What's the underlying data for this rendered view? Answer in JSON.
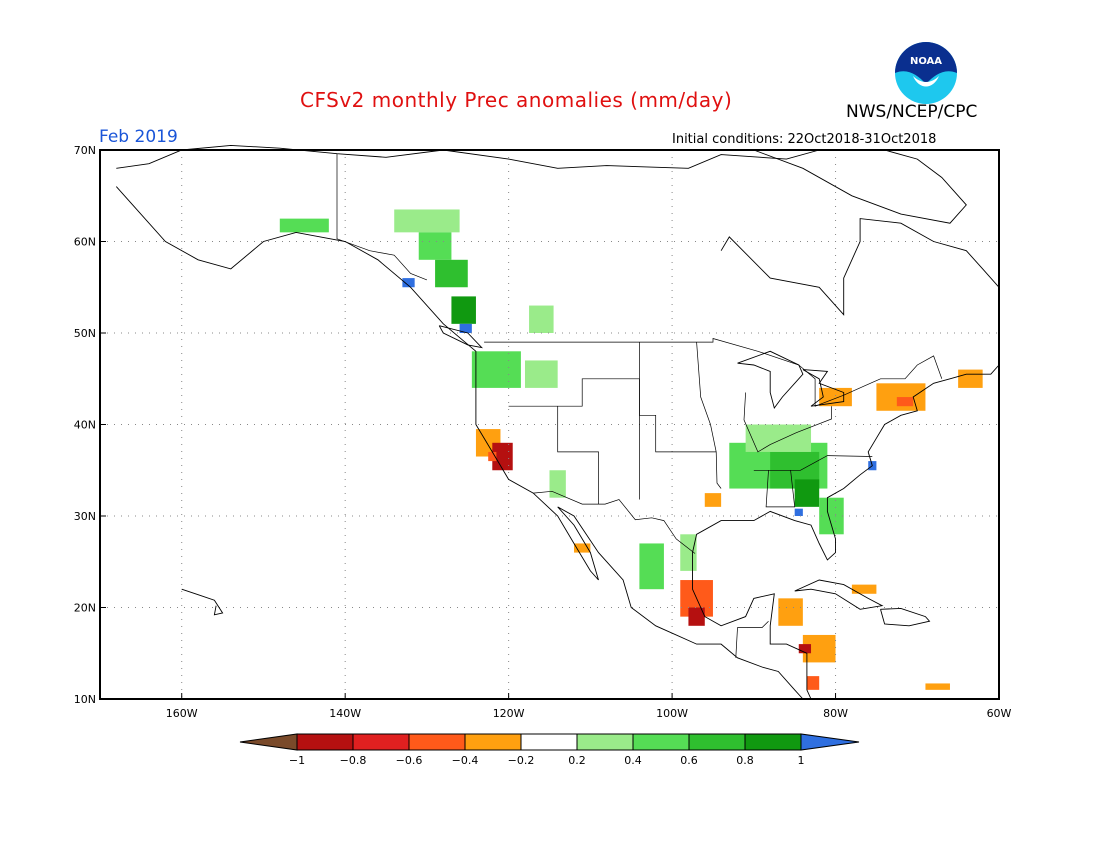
{
  "title": "CFSv2 monthly Prec anomalies (mm/day)",
  "agency": "NWS/NCEP/CPC",
  "logo_text": "NOAA",
  "month": "Feb 2019",
  "initial_conditions": "Initial conditions: 22Oct2018-31Oct2018",
  "map_extent": {
    "lon_min": -170,
    "lon_max": -60,
    "lat_min": 10,
    "lat_max": 70
  },
  "lat_ticks": [
    {
      "v": 70,
      "label": "70N"
    },
    {
      "v": 60,
      "label": "60N"
    },
    {
      "v": 50,
      "label": "50N"
    },
    {
      "v": 40,
      "label": "40N"
    },
    {
      "v": 30,
      "label": "30N"
    },
    {
      "v": 20,
      "label": "20N"
    },
    {
      "v": 10,
      "label": "10N"
    }
  ],
  "lon_ticks": [
    {
      "v": -160,
      "label": "160W"
    },
    {
      "v": -140,
      "label": "140W"
    },
    {
      "v": -120,
      "label": "120W"
    },
    {
      "v": -100,
      "label": "100W"
    },
    {
      "v": -80,
      "label": "80W"
    },
    {
      "v": -60,
      "label": "60W"
    }
  ],
  "colorbar": {
    "labels": [
      "−1",
      "−0.8",
      "−0.6",
      "−0.4",
      "−0.2",
      "0.2",
      "0.4",
      "0.6",
      "0.8",
      "1"
    ],
    "colors": {
      "lt_neg1": "#7a4a2a",
      "neg1_neg08": "#b51010",
      "neg08_neg06": "#e02020",
      "neg06_neg04": "#ff5a1a",
      "neg04_neg02": "#ffa010",
      "neg02_02": "#ffffff",
      "02_04": "#9aeb8a",
      "04_06": "#55dd55",
      "06_08": "#2fbf2f",
      "08_1": "#109910",
      "gt_1": "#2f6fe0"
    }
  },
  "colors": {
    "title": "#e01010",
    "month": "#1a55d8",
    "coast": "#000000",
    "grid": "#888888"
  },
  "anomaly_patches": [
    {
      "lon": -134,
      "lat": 61,
      "w": 8,
      "h": 2.5,
      "cat": "02_04"
    },
    {
      "lon": -148,
      "lat": 61,
      "w": 6,
      "h": 1.5,
      "cat": "04_06"
    },
    {
      "lon": -131,
      "lat": 58,
      "w": 4,
      "h": 3,
      "cat": "04_06"
    },
    {
      "lon": -129,
      "lat": 55,
      "w": 4,
      "h": 3,
      "cat": "06_08"
    },
    {
      "lon": -127,
      "lat": 51,
      "w": 3,
      "h": 3,
      "cat": "08_1"
    },
    {
      "lon": -133,
      "lat": 55,
      "w": 1.5,
      "h": 1,
      "cat": "gt_1"
    },
    {
      "lon": -126,
      "lat": 50,
      "w": 1.5,
      "h": 1,
      "cat": "gt_1"
    },
    {
      "lon": -124.5,
      "lat": 44,
      "w": 6,
      "h": 4,
      "cat": "04_06"
    },
    {
      "lon": -118,
      "lat": 44,
      "w": 4,
      "h": 3,
      "cat": "02_04"
    },
    {
      "lon": -117.5,
      "lat": 50,
      "w": 3,
      "h": 3,
      "cat": "02_04"
    },
    {
      "lon": -124,
      "lat": 36.5,
      "w": 3,
      "h": 3,
      "cat": "neg04_neg02"
    },
    {
      "lon": -122,
      "lat": 35,
      "w": 2.5,
      "h": 3,
      "cat": "neg1_neg08"
    },
    {
      "lon": -122.5,
      "lat": 36,
      "w": 1,
      "h": 1,
      "cat": "neg06_neg04"
    },
    {
      "lon": -115,
      "lat": 32,
      "w": 2,
      "h": 3,
      "cat": "02_04"
    },
    {
      "lon": -93,
      "lat": 33,
      "w": 12,
      "h": 5,
      "cat": "04_06"
    },
    {
      "lon": -88,
      "lat": 33,
      "w": 6,
      "h": 4,
      "cat": "06_08"
    },
    {
      "lon": -85,
      "lat": 31,
      "w": 3,
      "h": 3,
      "cat": "08_1"
    },
    {
      "lon": -91,
      "lat": 37,
      "w": 8,
      "h": 3,
      "cat": "02_04"
    },
    {
      "lon": -82,
      "lat": 28,
      "w": 3,
      "h": 4,
      "cat": "04_06"
    },
    {
      "lon": -85,
      "lat": 30,
      "w": 1,
      "h": 0.8,
      "cat": "gt_1"
    },
    {
      "lon": -76,
      "lat": 35,
      "w": 1,
      "h": 1,
      "cat": "gt_1"
    },
    {
      "lon": -82,
      "lat": 42,
      "w": 4,
      "h": 2,
      "cat": "neg04_neg02"
    },
    {
      "lon": -75,
      "lat": 41.5,
      "w": 6,
      "h": 3,
      "cat": "neg04_neg02"
    },
    {
      "lon": -72.5,
      "lat": 42,
      "w": 2,
      "h": 1,
      "cat": "neg06_neg04"
    },
    {
      "lon": -65,
      "lat": 44,
      "w": 3,
      "h": 2,
      "cat": "neg04_neg02"
    },
    {
      "lon": -99,
      "lat": 19,
      "w": 4,
      "h": 4,
      "cat": "neg06_neg04"
    },
    {
      "lon": -98,
      "lat": 18,
      "w": 2,
      "h": 2,
      "cat": "neg1_neg08"
    },
    {
      "lon": -104,
      "lat": 22,
      "w": 3,
      "h": 5,
      "cat": "04_06"
    },
    {
      "lon": -99,
      "lat": 24,
      "w": 2,
      "h": 4,
      "cat": "02_04"
    },
    {
      "lon": -87,
      "lat": 18,
      "w": 3,
      "h": 3,
      "cat": "neg04_neg02"
    },
    {
      "lon": -84,
      "lat": 14,
      "w": 4,
      "h": 3,
      "cat": "neg04_neg02"
    },
    {
      "lon": -84.5,
      "lat": 15,
      "w": 1.5,
      "h": 1,
      "cat": "neg1_neg08"
    },
    {
      "lon": -83.5,
      "lat": 11,
      "w": 1.5,
      "h": 1.5,
      "cat": "neg06_neg04"
    },
    {
      "lon": -78,
      "lat": 21.5,
      "w": 3,
      "h": 1,
      "cat": "neg04_neg02"
    },
    {
      "lon": -96,
      "lat": 31,
      "w": 2,
      "h": 1.5,
      "cat": "neg04_neg02"
    },
    {
      "lon": -112,
      "lat": 26,
      "w": 2,
      "h": 1,
      "cat": "neg04_neg02"
    },
    {
      "lon": -69,
      "lat": 11,
      "w": 3,
      "h": 0.7,
      "cat": "neg04_neg02"
    }
  ],
  "coastlines": [
    {
      "name": "pacific-coast",
      "pts": [
        [
          -168,
          66
        ],
        [
          -166,
          64
        ],
        [
          -162,
          60
        ],
        [
          -158,
          58
        ],
        [
          -154,
          57
        ],
        [
          -150,
          60
        ],
        [
          -146,
          61
        ],
        [
          -140,
          60
        ],
        [
          -136,
          58
        ],
        [
          -132,
          55
        ],
        [
          -128,
          51
        ],
        [
          -124,
          48
        ],
        [
          -124,
          44
        ],
        [
          -124,
          40
        ],
        [
          -122,
          37
        ],
        [
          -120,
          34
        ],
        [
          -117,
          32.5
        ],
        [
          -114,
          30
        ],
        [
          -112,
          27
        ],
        [
          -110,
          24
        ],
        [
          -109,
          23
        ],
        [
          -110,
          26
        ],
        [
          -112,
          29
        ],
        [
          -114,
          31
        ],
        [
          -112,
          30
        ],
        [
          -109,
          26
        ],
        [
          -106,
          23
        ],
        [
          -105,
          20
        ],
        [
          -102,
          18
        ],
        [
          -97,
          16
        ],
        [
          -94,
          16
        ],
        [
          -92,
          14.5
        ],
        [
          -89,
          13.5
        ],
        [
          -87,
          13
        ],
        [
          -85,
          11
        ],
        [
          -84,
          10
        ]
      ]
    },
    {
      "name": "gulf-atlantic-coast",
      "pts": [
        [
          -83,
          10
        ],
        [
          -83.5,
          11
        ],
        [
          -83.5,
          15
        ],
        [
          -86,
          16
        ],
        [
          -88,
          16
        ],
        [
          -88,
          18
        ],
        [
          -87.5,
          21.5
        ],
        [
          -90,
          21
        ],
        [
          -91,
          19
        ],
        [
          -94,
          18
        ],
        [
          -96,
          19
        ],
        [
          -97.5,
          22
        ],
        [
          -97.5,
          26
        ],
        [
          -97,
          28
        ],
        [
          -94,
          29.5
        ],
        [
          -90,
          29.5
        ],
        [
          -88,
          30.5
        ],
        [
          -85,
          29.5
        ],
        [
          -83,
          29
        ],
        [
          -82,
          27
        ],
        [
          -81,
          25.2
        ],
        [
          -80,
          26
        ],
        [
          -80,
          27.5
        ],
        [
          -81,
          30.5
        ],
        [
          -81,
          32
        ],
        [
          -79,
          33
        ],
        [
          -77,
          34.5
        ],
        [
          -75.5,
          35.5
        ],
        [
          -76,
          37
        ],
        [
          -75,
          38.5
        ],
        [
          -74,
          40
        ],
        [
          -72,
          41
        ],
        [
          -70,
          41.5
        ],
        [
          -70.5,
          43
        ],
        [
          -68,
          44.5
        ],
        [
          -66,
          45
        ],
        [
          -64,
          45.5
        ],
        [
          -61,
          45.5
        ],
        [
          -60,
          46.5
        ]
      ]
    },
    {
      "name": "hudson-bay",
      "pts": [
        [
          -94,
          59
        ],
        [
          -93,
          60.5
        ],
        [
          -88,
          56
        ],
        [
          -82,
          55
        ],
        [
          -79,
          52
        ],
        [
          -79,
          56
        ],
        [
          -77,
          60
        ],
        [
          -77,
          62.5
        ],
        [
          -72,
          62
        ],
        [
          -68,
          60
        ],
        [
          -64,
          59
        ],
        [
          -62,
          57
        ],
        [
          -60,
          55
        ]
      ]
    },
    {
      "name": "arctic-coast",
      "pts": [
        [
          -168,
          68
        ],
        [
          -164,
          68.5
        ],
        [
          -160,
          70
        ],
        [
          -154,
          70.5
        ],
        [
          -148,
          70.2
        ],
        [
          -141,
          69.6
        ],
        [
          -135,
          69.2
        ],
        [
          -128,
          70
        ],
        [
          -120,
          69
        ],
        [
          -114,
          68
        ],
        [
          -108,
          68.3
        ],
        [
          -98,
          68
        ],
        [
          -94,
          69.5
        ],
        [
          -86,
          69
        ],
        [
          -82,
          70
        ]
      ]
    },
    {
      "name": "great-lakes",
      "pts": [
        [
          -92,
          46.7
        ],
        [
          -88,
          48
        ],
        [
          -84.5,
          46.5
        ],
        [
          -84,
          45.5
        ],
        [
          -86.5,
          43
        ],
        [
          -87.5,
          41.8
        ],
        [
          -88,
          43.5
        ],
        [
          -88,
          45.8
        ],
        [
          -90,
          46.5
        ],
        [
          -92,
          46.7
        ]
      ]
    },
    {
      "name": "lake-huron-erie",
      "pts": [
        [
          -84,
          46
        ],
        [
          -82,
          45
        ],
        [
          -81.5,
          43
        ],
        [
          -83,
          42
        ],
        [
          -79,
          42.5
        ],
        [
          -79,
          43.5
        ],
        [
          -82,
          44.5
        ],
        [
          -81,
          45.8
        ],
        [
          -84,
          46
        ]
      ]
    },
    {
      "name": "cuba",
      "pts": [
        [
          -85,
          21.8
        ],
        [
          -82,
          23
        ],
        [
          -79,
          22.5
        ],
        [
          -76,
          21
        ],
        [
          -74.3,
          20.2
        ],
        [
          -77,
          19.8
        ],
        [
          -80,
          21.5
        ],
        [
          -83,
          22
        ],
        [
          -85,
          21.8
        ]
      ]
    },
    {
      "name": "hispaniola",
      "pts": [
        [
          -74.5,
          19.8
        ],
        [
          -72,
          19.9
        ],
        [
          -69,
          19
        ],
        [
          -68.5,
          18.5
        ],
        [
          -71,
          18
        ],
        [
          -74,
          18.2
        ],
        [
          -74.5,
          19.8
        ]
      ]
    },
    {
      "name": "hawaii",
      "pts": [
        [
          -160,
          22
        ],
        [
          -158,
          21.4
        ],
        [
          -156,
          20.8
        ],
        [
          -155,
          19.4
        ],
        [
          -156,
          19.2
        ],
        [
          -155.8,
          20.2
        ]
      ]
    },
    {
      "name": "vancouver-island",
      "pts": [
        [
          -128.5,
          50.8
        ],
        [
          -125,
          50
        ],
        [
          -123.3,
          48.4
        ],
        [
          -125,
          48.7
        ],
        [
          -128,
          50
        ],
        [
          -128.5,
          50.8
        ]
      ]
    },
    {
      "name": "baffin",
      "pts": [
        [
          -90,
          70
        ],
        [
          -84,
          68
        ],
        [
          -78,
          65
        ],
        [
          -72,
          63
        ],
        [
          -66,
          62
        ],
        [
          -64,
          64
        ],
        [
          -67,
          67
        ],
        [
          -70,
          69
        ],
        [
          -74,
          70
        ]
      ]
    }
  ],
  "borders": [
    {
      "name": "us-canada",
      "pts": [
        [
          -123,
          49
        ],
        [
          -95,
          49
        ],
        [
          -95,
          49.4
        ],
        [
          -89.5,
          48
        ],
        [
          -84.5,
          46.5
        ],
        [
          -82.5,
          45
        ],
        [
          -82.5,
          42
        ],
        [
          -79,
          43.2
        ],
        [
          -76.5,
          44.2
        ],
        [
          -74.5,
          45
        ],
        [
          -71.5,
          45
        ],
        [
          -70,
          46.5
        ],
        [
          -68,
          47.5
        ],
        [
          -67,
          45
        ]
      ]
    },
    {
      "name": "us-mexico",
      "pts": [
        [
          -117,
          32.5
        ],
        [
          -114.7,
          32.7
        ],
        [
          -111,
          31.3
        ],
        [
          -108.2,
          31.3
        ],
        [
          -106.5,
          31.8
        ],
        [
          -104.5,
          29.6
        ],
        [
          -102.5,
          29.8
        ],
        [
          -101,
          29.5
        ],
        [
          -99.5,
          27.5
        ],
        [
          -97.2,
          25.9
        ]
      ]
    },
    {
      "name": "alaska-canada",
      "pts": [
        [
          -141,
          69.6
        ],
        [
          -141,
          60.3
        ],
        [
          -137,
          59
        ],
        [
          -134,
          58.5
        ],
        [
          -132,
          56.5
        ],
        [
          -130,
          55.8
        ]
      ]
    },
    {
      "name": "state-lines-west",
      "pts": [
        [
          -120,
          42
        ],
        [
          -111,
          42
        ],
        [
          -111,
          45
        ],
        [
          -104,
          45
        ],
        [
          -104,
          41
        ],
        [
          -102,
          41
        ],
        [
          -102,
          37
        ],
        [
          -94.6,
          37
        ]
      ]
    },
    {
      "name": "state-lines-mid",
      "pts": [
        [
          -114,
          42
        ],
        [
          -114,
          37
        ],
        [
          -109,
          37
        ],
        [
          -109,
          31.3
        ]
      ]
    },
    {
      "name": "state-lines-central",
      "pts": [
        [
          -104,
          49
        ],
        [
          -104,
          31.8
        ]
      ]
    },
    {
      "name": "state-lines-plains",
      "pts": [
        [
          -97,
          49
        ],
        [
          -96.5,
          43
        ],
        [
          -95.3,
          40
        ],
        [
          -94.6,
          37
        ],
        [
          -94.5,
          33.6
        ],
        [
          -94,
          33
        ]
      ]
    },
    {
      "name": "state-lines-ne",
      "pts": [
        [
          -91,
          43.5
        ],
        [
          -91.2,
          40.5
        ],
        [
          -89.5,
          37
        ],
        [
          -88,
          37.8
        ],
        [
          -84.8,
          39.1
        ],
        [
          -80.5,
          40.6
        ],
        [
          -80.5,
          42
        ]
      ]
    },
    {
      "name": "state-lines-se",
      "pts": [
        [
          -90,
          35
        ],
        [
          -84.3,
          35
        ],
        [
          -81,
          36.6
        ],
        [
          -75.5,
          36.5
        ]
      ]
    },
    {
      "name": "state-lines-deep-south",
      "pts": [
        [
          -88.2,
          35
        ],
        [
          -88.5,
          31
        ],
        [
          -85,
          31
        ],
        [
          -85.5,
          35
        ]
      ]
    },
    {
      "name": "mexico-guatemala",
      "pts": [
        [
          -92.2,
          14.5
        ],
        [
          -92,
          17.8
        ],
        [
          -91,
          17.8
        ],
        [
          -89,
          17.8
        ],
        [
          -88.2,
          18.5
        ]
      ]
    }
  ]
}
